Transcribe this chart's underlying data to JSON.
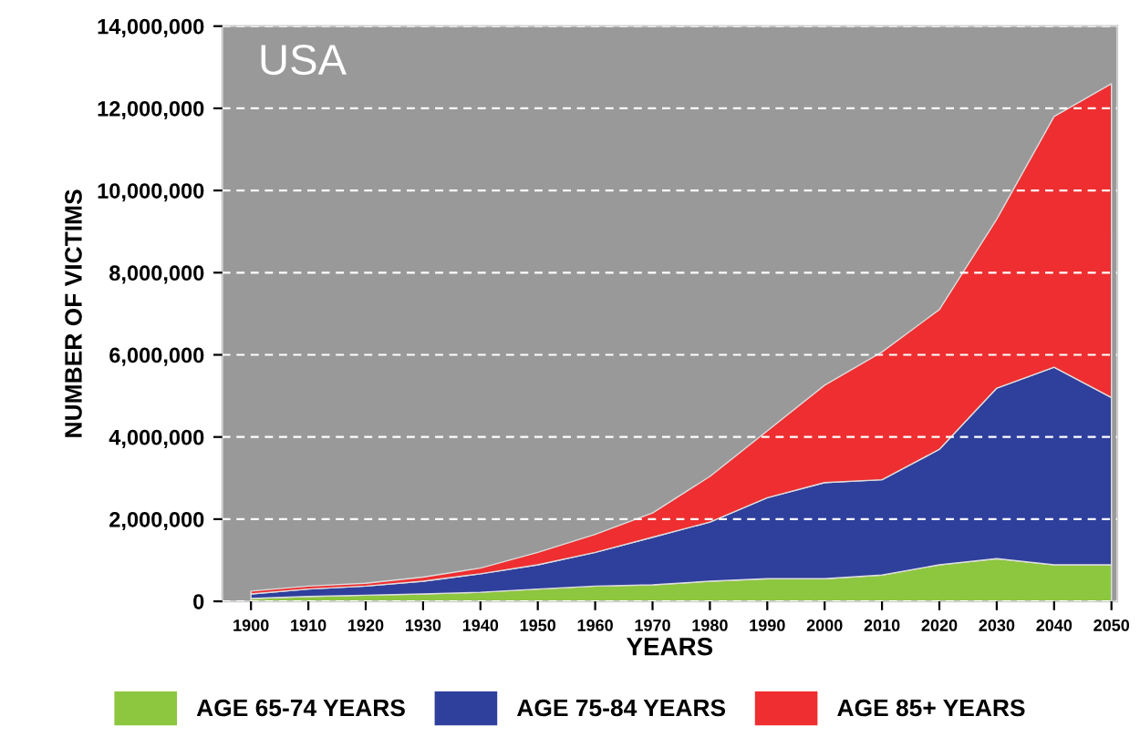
{
  "chart_data": {
    "type": "area",
    "stacked": true,
    "xlabel": "YEARS",
    "ylabel": "NUMBER OF VICTIMS",
    "annotations": [
      "USA"
    ],
    "x": [
      1900,
      1910,
      1920,
      1930,
      1940,
      1950,
      1960,
      1970,
      1980,
      1990,
      2000,
      2010,
      2020,
      2030,
      2040,
      2050
    ],
    "series": [
      {
        "name": "AGE 65-74 YEARS",
        "color": "#8dc63f",
        "values": [
          70000,
          120000,
          150000,
          180000,
          220000,
          300000,
          370000,
          400000,
          490000,
          550000,
          550000,
          640000,
          890000,
          1040000,
          890000,
          890000
        ]
      },
      {
        "name": "AGE 75-84 YEARS",
        "color": "#2e3f9c",
        "values": [
          110000,
          180000,
          220000,
          310000,
          450000,
          590000,
          820000,
          1160000,
          1440000,
          1970000,
          2340000,
          2320000,
          2810000,
          4150000,
          4810000,
          4070000
        ]
      },
      {
        "name": "AGE 85+ YEARS",
        "color": "#ee2e30",
        "values": [
          70000,
          70000,
          70000,
          100000,
          140000,
          300000,
          440000,
          590000,
          1110000,
          1630000,
          2370000,
          3110000,
          3400000,
          4110000,
          6100000,
          7640000
        ]
      }
    ],
    "xlim": [
      1895,
      2051
    ],
    "xticks": [
      1900,
      1910,
      1920,
      1930,
      1940,
      1950,
      1960,
      1970,
      1980,
      1990,
      2000,
      2010,
      2020,
      2030,
      2040,
      2050
    ],
    "ylim": [
      0,
      14000000
    ],
    "yticks": [
      {
        "value": 0,
        "label": "0"
      },
      {
        "value": 2000000,
        "label": "2,000,000"
      },
      {
        "value": 4000000,
        "label": "4,000,000"
      },
      {
        "value": 6000000,
        "label": "6,000,000"
      },
      {
        "value": 8000000,
        "label": "8,000,000"
      },
      {
        "value": 10000000,
        "label": "10,000,000"
      },
      {
        "value": 12000000,
        "label": "12,000,000"
      },
      {
        "value": 14000000,
        "label": "14,000,000"
      }
    ],
    "grid": "y",
    "legend": "bottom"
  }
}
